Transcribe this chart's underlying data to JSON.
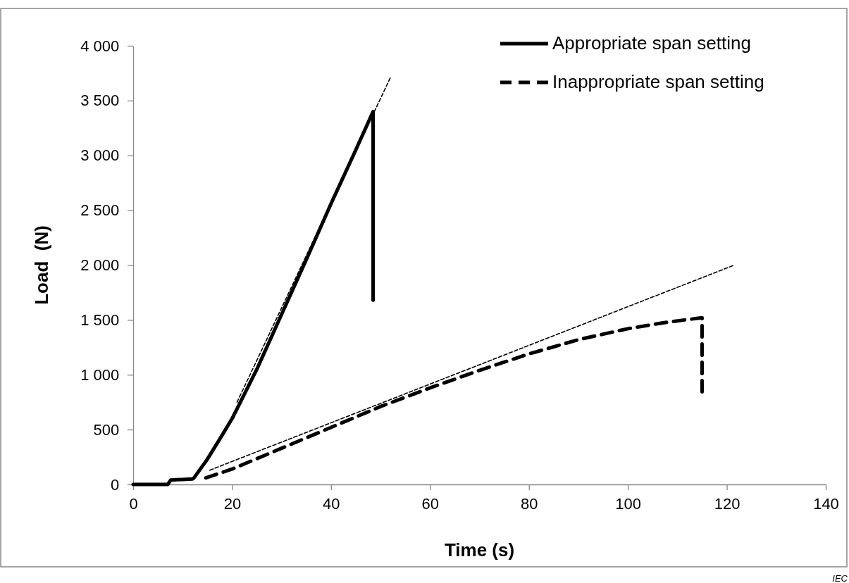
{
  "chart_data": {
    "type": "line",
    "xlabel": "Time (s)",
    "ylabel": "Load  (N)",
    "legend": "top right",
    "grid": false,
    "marker": "none",
    "xlim": [
      0,
      140
    ],
    "xticks": [
      0,
      20,
      40,
      60,
      80,
      100,
      120,
      140
    ],
    "ylim": [
      0,
      4000
    ],
    "yticks": [
      {
        "value": 0,
        "label": "0"
      },
      {
        "value": 500,
        "label": "500"
      },
      {
        "value": 1000,
        "label": "1 000"
      },
      {
        "value": 1500,
        "label": "1 500"
      },
      {
        "value": 2000,
        "label": "2 000"
      },
      {
        "value": 2500,
        "label": "2 500"
      },
      {
        "value": 3000,
        "label": "3 000"
      },
      {
        "value": 3500,
        "label": "3 500"
      },
      {
        "value": 4000,
        "label": "4 000"
      }
    ],
    "annotations": [
      "IEC"
    ],
    "series": [
      {
        "name": "Appropriate span setting",
        "color": "#000000",
        "line_style": "solid",
        "x": [
          0,
          7,
          7.6,
          12,
          12.3,
          15,
          18,
          20,
          25,
          30,
          35,
          40,
          45,
          48.5,
          48.5
        ],
        "values": [
          0,
          0,
          40,
          50,
          60,
          230,
          450,
          600,
          1050,
          1550,
          2050,
          2560,
          3050,
          3400,
          1680
        ]
      },
      {
        "name": "Inappropriate span setting",
        "color": "#000000",
        "line_style": "dashed",
        "x": [
          14.7,
          20,
          30,
          40,
          50,
          60,
          70,
          80,
          90,
          100,
          108,
          115,
          115
        ],
        "values": [
          60,
          140,
          330,
          520,
          710,
          880,
          1040,
          1190,
          1320,
          1420,
          1480,
          1520,
          800
        ]
      },
      {
        "color": "#000000",
        "line_style": "dotted",
        "x": [
          21,
          52
        ],
        "values": [
          750,
          3710
        ]
      },
      {
        "color": "#000000",
        "line_style": "dotted",
        "x": [
          15.5,
          121.5
        ],
        "values": [
          130,
          2000
        ]
      }
    ]
  }
}
